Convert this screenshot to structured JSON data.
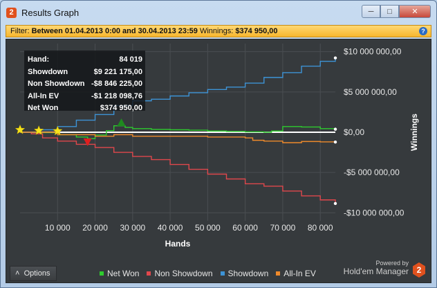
{
  "window": {
    "title": "Results Graph",
    "app_icon_label": "2"
  },
  "filter": {
    "label": "Filter:",
    "range_text": "Between 01.04.2013 0:00 and 30.04.2013 23:59",
    "winnings_label": "Winnings:",
    "winnings_value": "$374 950,00",
    "help_glyph": "?"
  },
  "tooltip": {
    "rows": [
      {
        "label": "Hand:",
        "value": "84 019"
      },
      {
        "label": "Showdown",
        "value": "$9 221 175,00"
      },
      {
        "label": "Non Showdown",
        "value": "-$8 846 225,00"
      },
      {
        "label": "All-In EV",
        "value": "-$1 218 098,76"
      },
      {
        "label": "Net Won",
        "value": "$374 950,00"
      }
    ]
  },
  "options_label": "Options",
  "brand": {
    "powered_by": "Powered by",
    "name": "Hold'em Manager",
    "logo_glyph": "2"
  },
  "colors": {
    "net_won": "#2ecc2e",
    "non_showdown": "#e0474c",
    "showdown": "#3d93d6",
    "all_in_ev": "#ef8a2b",
    "zero_line": "#ffffff",
    "grid": "#4a4e52"
  },
  "chart_data": {
    "type": "line",
    "xlabel": "Hands",
    "ylabel": "Winnings",
    "xlim": [
      0,
      84019
    ],
    "ylim": [
      -11000000,
      11000000
    ],
    "x_ticks": [
      10000,
      20000,
      30000,
      40000,
      50000,
      60000,
      70000,
      80000
    ],
    "x_tick_labels": [
      "10 000",
      "20 000",
      "30 000",
      "40 000",
      "50 000",
      "60 000",
      "70 000",
      "80 000"
    ],
    "y_ticks": [
      10000000,
      5000000,
      0,
      -5000000,
      -10000000
    ],
    "y_tick_labels": [
      "$10 000 000,00",
      "$5 000 000,00",
      "$0,00",
      "-$5 000 000,00",
      "-$10 000 000,00"
    ],
    "grid": true,
    "legend_position": "bottom",
    "series": [
      {
        "name": "Net Won",
        "color_key": "net_won",
        "x": [
          0,
          5000,
          10000,
          15000,
          18000,
          20000,
          23000,
          25000,
          28000,
          30000,
          35000,
          40000,
          45000,
          50000,
          55000,
          60000,
          65000,
          67000,
          70000,
          75000,
          80000,
          84019
        ],
        "y": [
          0,
          -50000,
          -300000,
          -600000,
          -800000,
          -350000,
          200000,
          800000,
          600000,
          450000,
          350000,
          300000,
          250000,
          150000,
          100000,
          50000,
          0,
          150000,
          700000,
          650000,
          450000,
          374950
        ]
      },
      {
        "name": "Non Showdown",
        "color_key": "non_showdown",
        "x": [
          0,
          3000,
          6000,
          10000,
          15000,
          20000,
          25000,
          30000,
          35000,
          40000,
          45000,
          50000,
          55000,
          60000,
          65000,
          70000,
          75000,
          80000,
          84019
        ],
        "y": [
          0,
          -200000,
          -700000,
          -1100000,
          -1500000,
          -1900000,
          -2500000,
          -3000000,
          -3400000,
          -4000000,
          -4600000,
          -5200000,
          -5800000,
          -6400000,
          -6700000,
          -7300000,
          -7900000,
          -8400000,
          -8846225
        ]
      },
      {
        "name": "Showdown",
        "color_key": "showdown",
        "x": [
          0,
          5000,
          10000,
          15000,
          20000,
          25000,
          30000,
          35000,
          40000,
          45000,
          50000,
          55000,
          60000,
          65000,
          70000,
          75000,
          80000,
          84019
        ],
        "y": [
          0,
          300000,
          700000,
          1500000,
          2200000,
          3300000,
          3900000,
          4100000,
          4500000,
          4900000,
          5300000,
          5600000,
          6100000,
          6800000,
          7400000,
          8200000,
          8800000,
          9221175
        ]
      },
      {
        "name": "All-In EV",
        "color_key": "all_in_ev",
        "x": [
          0,
          10000,
          20000,
          25000,
          30000,
          40000,
          50000,
          60000,
          62000,
          65000,
          70000,
          75000,
          80000,
          84019
        ],
        "y": [
          0,
          -300000,
          -500000,
          -300000,
          -500000,
          -500000,
          -600000,
          -700000,
          -1000000,
          -1100000,
          -1300000,
          -1150000,
          -1200000,
          -1218099
        ]
      }
    ],
    "markers": [
      {
        "type": "star",
        "x": 0,
        "y": 300000
      },
      {
        "type": "star",
        "x": 5000,
        "y": 200000
      },
      {
        "type": "star",
        "x": 10000,
        "y": 150000
      },
      {
        "type": "triangle-down",
        "x": 18000,
        "y": -1200000
      },
      {
        "type": "triangle-up",
        "x": 27000,
        "y": 1200000
      }
    ]
  }
}
